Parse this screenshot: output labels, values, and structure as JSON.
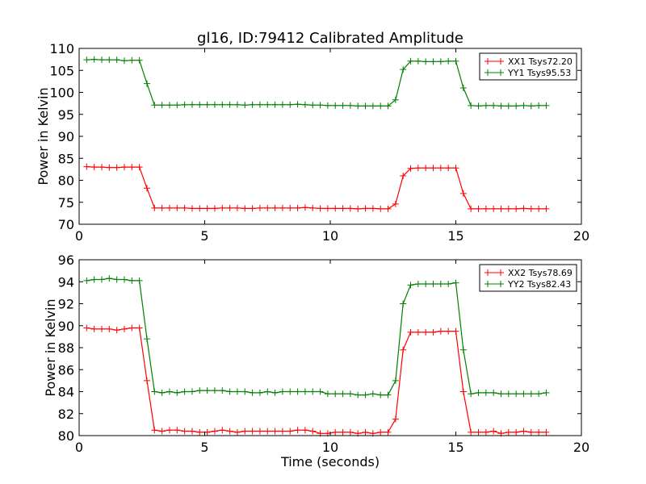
{
  "chart_data": [
    {
      "type": "line",
      "title": "gl16, ID:79412 Calibrated Amplitude",
      "xlabel": "",
      "ylabel": "Power in Kelvin",
      "xlim": [
        0,
        20
      ],
      "ylim": [
        70,
        110
      ],
      "xticks": [
        0,
        5,
        10,
        15,
        20
      ],
      "yticks": [
        70,
        75,
        80,
        85,
        90,
        95,
        100,
        105,
        110
      ],
      "grid": false,
      "legend_position": "top-right",
      "x": [
        0.3,
        0.6,
        0.9,
        1.2,
        1.5,
        1.8,
        2.1,
        2.4,
        2.7,
        3.0,
        3.3,
        3.6,
        3.9,
        4.2,
        4.5,
        4.8,
        5.1,
        5.4,
        5.7,
        6.0,
        6.3,
        6.6,
        6.9,
        7.2,
        7.5,
        7.8,
        8.1,
        8.4,
        8.7,
        9.0,
        9.3,
        9.6,
        9.9,
        10.2,
        10.5,
        10.8,
        11.1,
        11.4,
        11.7,
        12.0,
        12.3,
        12.6,
        12.9,
        13.2,
        13.5,
        13.8,
        14.1,
        14.4,
        14.7,
        15.0,
        15.3,
        15.6,
        15.9,
        16.2,
        16.5,
        16.8,
        17.1,
        17.4,
        17.7,
        18.0,
        18.3,
        18.6
      ],
      "series": [
        {
          "name": "XX1 Tsys72.20",
          "color": "#ff0000",
          "values": [
            83.1,
            83.0,
            83.0,
            82.9,
            82.9,
            83.0,
            83.0,
            83.0,
            78.2,
            73.7,
            73.7,
            73.7,
            73.7,
            73.7,
            73.6,
            73.6,
            73.6,
            73.6,
            73.7,
            73.7,
            73.7,
            73.6,
            73.6,
            73.7,
            73.7,
            73.7,
            73.7,
            73.7,
            73.7,
            73.8,
            73.7,
            73.6,
            73.6,
            73.6,
            73.6,
            73.6,
            73.5,
            73.6,
            73.6,
            73.5,
            73.5,
            74.6,
            81.0,
            82.7,
            82.8,
            82.8,
            82.8,
            82.8,
            82.8,
            82.8,
            77.0,
            73.5,
            73.5,
            73.5,
            73.5,
            73.5,
            73.5,
            73.5,
            73.6,
            73.5,
            73.5,
            73.5
          ]
        },
        {
          "name": "YY1 Tsys95.53",
          "color": "#008000",
          "values": [
            107.4,
            107.5,
            107.4,
            107.4,
            107.4,
            107.2,
            107.3,
            107.3,
            102.0,
            97.1,
            97.1,
            97.1,
            97.1,
            97.2,
            97.2,
            97.2,
            97.2,
            97.2,
            97.2,
            97.2,
            97.2,
            97.1,
            97.2,
            97.2,
            97.2,
            97.2,
            97.2,
            97.2,
            97.3,
            97.2,
            97.1,
            97.1,
            97.0,
            97.0,
            97.0,
            97.0,
            96.9,
            96.9,
            96.9,
            96.9,
            96.9,
            98.3,
            105.2,
            107.1,
            107.1,
            107.0,
            107.0,
            107.0,
            107.1,
            107.1,
            101.0,
            97.0,
            96.9,
            97.0,
            97.0,
            96.9,
            96.9,
            96.9,
            97.0,
            96.9,
            97.0,
            97.0
          ]
        }
      ]
    },
    {
      "type": "line",
      "title": "",
      "xlabel": "Time (seconds)",
      "ylabel": "Power in Kelvin",
      "xlim": [
        0,
        20
      ],
      "ylim": [
        80,
        96
      ],
      "xticks": [
        0,
        5,
        10,
        15,
        20
      ],
      "yticks": [
        80,
        82,
        84,
        86,
        88,
        90,
        92,
        94,
        96
      ],
      "grid": false,
      "legend_position": "top-right",
      "x": [
        0.3,
        0.6,
        0.9,
        1.2,
        1.5,
        1.8,
        2.1,
        2.4,
        2.7,
        3.0,
        3.3,
        3.6,
        3.9,
        4.2,
        4.5,
        4.8,
        5.1,
        5.4,
        5.7,
        6.0,
        6.3,
        6.6,
        6.9,
        7.2,
        7.5,
        7.8,
        8.1,
        8.4,
        8.7,
        9.0,
        9.3,
        9.6,
        9.9,
        10.2,
        10.5,
        10.8,
        11.1,
        11.4,
        11.7,
        12.0,
        12.3,
        12.6,
        12.9,
        13.2,
        13.5,
        13.8,
        14.1,
        14.4,
        14.7,
        15.0,
        15.3,
        15.6,
        15.9,
        16.2,
        16.5,
        16.8,
        17.1,
        17.4,
        17.7,
        18.0,
        18.3,
        18.6
      ],
      "series": [
        {
          "name": "XX2 Tsys78.69",
          "color": "#ff0000",
          "values": [
            89.8,
            89.7,
            89.7,
            89.7,
            89.6,
            89.7,
            89.8,
            89.8,
            85.0,
            80.5,
            80.4,
            80.5,
            80.5,
            80.4,
            80.4,
            80.3,
            80.3,
            80.4,
            80.5,
            80.4,
            80.3,
            80.4,
            80.4,
            80.4,
            80.4,
            80.4,
            80.4,
            80.4,
            80.5,
            80.5,
            80.4,
            80.2,
            80.2,
            80.3,
            80.3,
            80.3,
            80.2,
            80.3,
            80.2,
            80.3,
            80.3,
            81.5,
            87.8,
            89.4,
            89.4,
            89.4,
            89.4,
            89.5,
            89.5,
            89.5,
            84.0,
            80.3,
            80.3,
            80.3,
            80.4,
            80.2,
            80.3,
            80.3,
            80.4,
            80.3,
            80.3,
            80.3
          ]
        },
        {
          "name": "YY2 Tsys82.43",
          "color": "#008000",
          "values": [
            94.1,
            94.2,
            94.2,
            94.3,
            94.2,
            94.2,
            94.1,
            94.1,
            88.8,
            84.0,
            83.9,
            84.0,
            83.9,
            84.0,
            84.0,
            84.1,
            84.1,
            84.1,
            84.1,
            84.0,
            84.0,
            84.0,
            83.9,
            83.9,
            84.0,
            83.9,
            84.0,
            84.0,
            84.0,
            84.0,
            84.0,
            84.0,
            83.8,
            83.8,
            83.8,
            83.8,
            83.7,
            83.7,
            83.8,
            83.7,
            83.7,
            85.0,
            92.0,
            93.7,
            93.8,
            93.8,
            93.8,
            93.8,
            93.8,
            93.9,
            87.8,
            83.8,
            83.9,
            83.9,
            83.9,
            83.8,
            83.8,
            83.8,
            83.8,
            83.8,
            83.8,
            83.9
          ]
        }
      ]
    }
  ]
}
